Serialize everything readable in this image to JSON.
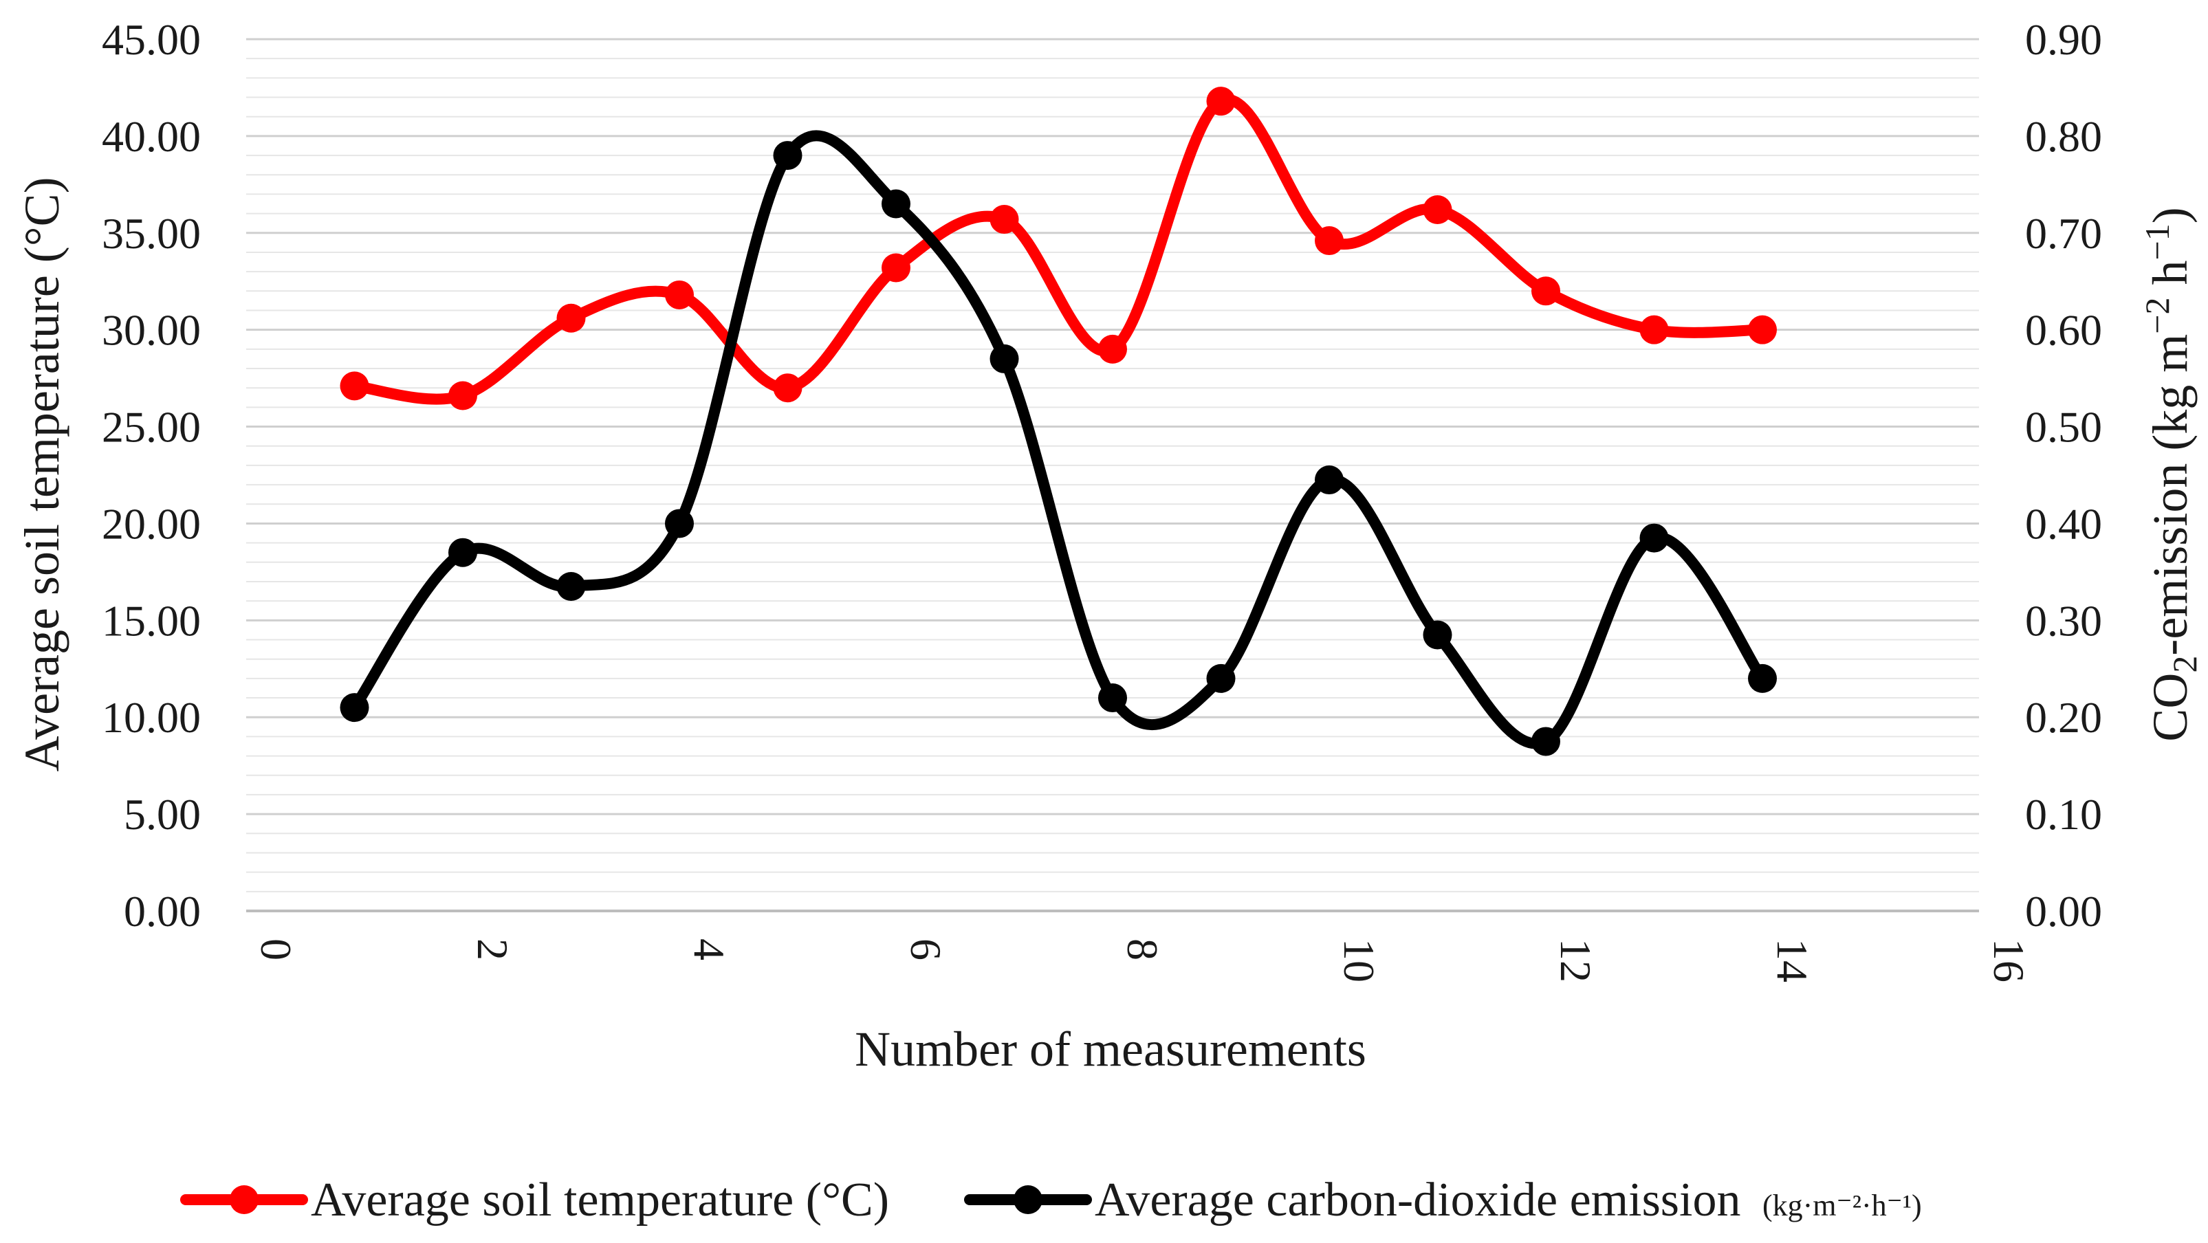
{
  "chart_data": {
    "type": "line",
    "title": "",
    "xlabel": "Number of measurements",
    "ylabel_left": "Average soil temperature (°C)",
    "ylabel_right": {
      "prefix": "CO",
      "subscript": "2",
      "suffix": "-emission (kg m",
      "sup1": "−2",
      "middle": " h",
      "sup2": "−1",
      "end": ")"
    },
    "xlim": [
      0,
      16
    ],
    "x_ticks": [
      "0",
      "2",
      "4",
      "6",
      "8",
      "10",
      "12",
      "14",
      "16"
    ],
    "ylim_left": [
      0,
      45
    ],
    "y_ticks_left": [
      "0.00",
      "5.00",
      "10.00",
      "15.00",
      "20.00",
      "25.00",
      "30.00",
      "35.00",
      "40.00",
      "45.00"
    ],
    "ylim_right": [
      0,
      0.9
    ],
    "y_ticks_right": [
      "0.00",
      "0.10",
      "0.20",
      "0.30",
      "0.40",
      "0.50",
      "0.60",
      "0.70",
      "0.80",
      "0.90"
    ],
    "grid": true,
    "legend_position": "bottom",
    "x": [
      1,
      2,
      3,
      4,
      5,
      6,
      7,
      8,
      9,
      10,
      11,
      12,
      13,
      14
    ],
    "series": [
      {
        "name": "Average soil temperature (°C)",
        "axis": "left",
        "color": "#ff0000",
        "values": [
          27.1,
          26.6,
          30.6,
          31.8,
          27.0,
          33.2,
          35.7,
          29.0,
          41.8,
          34.6,
          36.2,
          32.0,
          30.0,
          30.0
        ]
      },
      {
        "name": "Average carbon-dioxide emission",
        "name_unit": "(kg·m⁻²·h⁻¹)",
        "axis": "right",
        "color": "#000000",
        "values": [
          0.21,
          0.37,
          0.335,
          0.4,
          0.78,
          0.73,
          0.57,
          0.22,
          0.24,
          0.445,
          0.285,
          0.175,
          0.385,
          0.24
        ]
      }
    ]
  }
}
